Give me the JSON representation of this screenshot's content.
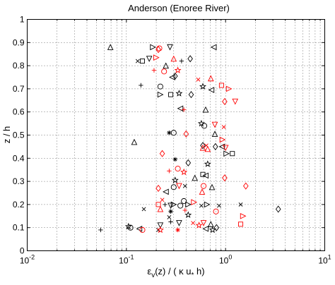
{
  "chart_data": {
    "type": "scatter",
    "title": "Anderson (Enoree River)",
    "ylabel": "z / h",
    "xlabel_parts": {
      "epsilon": "ε",
      "sub_v": "v",
      "mid": "(z) / ( κ u",
      "sub_star": "*",
      "end": " h)"
    },
    "x_scale": "log",
    "xlim": [
      0.01,
      10
    ],
    "ylim": [
      0,
      1
    ],
    "x_ticks": [
      {
        "value": 0.01,
        "base": "10",
        "exp": "-2"
      },
      {
        "value": 0.1,
        "base": "10",
        "exp": "-1"
      },
      {
        "value": 1,
        "base": "10",
        "exp": "0"
      },
      {
        "value": 10,
        "base": "10",
        "exp": "1"
      }
    ],
    "y_ticks": [
      "0",
      "0.1",
      "0.2",
      "0.3",
      "0.4",
      "0.5",
      "0.6",
      "0.7",
      "0.8",
      "0.9",
      "1"
    ],
    "grid": "dotted",
    "colors": {
      "black": "#000000",
      "red": "#ff0000"
    },
    "points": [
      {
        "x": 0.069,
        "y": 0.88,
        "m": "tri_up",
        "c": "black"
      },
      {
        "x": 0.185,
        "y": 0.88,
        "m": "tri_right",
        "c": "black"
      },
      {
        "x": 0.215,
        "y": 0.875,
        "m": "circle",
        "c": "red"
      },
      {
        "x": 0.275,
        "y": 0.88,
        "m": "tri_down",
        "c": "black"
      },
      {
        "x": 0.76,
        "y": 0.88,
        "m": "tri_left",
        "c": "black"
      },
      {
        "x": 0.2,
        "y": 0.835,
        "m": "tri_right",
        "c": "red"
      },
      {
        "x": 0.21,
        "y": 0.87,
        "m": "diamond",
        "c": "red"
      },
      {
        "x": 0.3,
        "y": 0.83,
        "m": "tri_up",
        "c": "red"
      },
      {
        "x": 0.13,
        "y": 0.82,
        "m": "x",
        "c": "black"
      },
      {
        "x": 0.145,
        "y": 0.82,
        "m": "square",
        "c": "black"
      },
      {
        "x": 0.17,
        "y": 0.83,
        "m": "tri_down",
        "c": "black"
      },
      {
        "x": 0.36,
        "y": 0.82,
        "m": "plus",
        "c": "black"
      },
      {
        "x": 0.44,
        "y": 0.83,
        "m": "diamond",
        "c": "black"
      },
      {
        "x": 0.33,
        "y": 0.78,
        "m": "star",
        "c": "red"
      },
      {
        "x": 0.25,
        "y": 0.8,
        "m": "tri_up",
        "c": "black"
      },
      {
        "x": 0.19,
        "y": 0.78,
        "m": "plus",
        "c": "red"
      },
      {
        "x": 0.24,
        "y": 0.775,
        "m": "circle",
        "c": "red"
      },
      {
        "x": 0.29,
        "y": 0.75,
        "m": "tri_left",
        "c": "black"
      },
      {
        "x": 0.31,
        "y": 0.755,
        "m": "diamond",
        "c": "black"
      },
      {
        "x": 0.53,
        "y": 0.74,
        "m": "x",
        "c": "red"
      },
      {
        "x": 0.71,
        "y": 0.745,
        "m": "tri_up",
        "c": "red"
      },
      {
        "x": 0.14,
        "y": 0.715,
        "m": "plus",
        "c": "black"
      },
      {
        "x": 0.22,
        "y": 0.71,
        "m": "circle",
        "c": "black"
      },
      {
        "x": 0.59,
        "y": 0.71,
        "m": "star",
        "c": "black"
      },
      {
        "x": 0.72,
        "y": 0.695,
        "m": "tri_left",
        "c": "black"
      },
      {
        "x": 0.91,
        "y": 0.715,
        "m": "square",
        "c": "red"
      },
      {
        "x": 1.08,
        "y": 0.7,
        "m": "tri_right",
        "c": "red"
      },
      {
        "x": 0.22,
        "y": 0.675,
        "m": "tri_right",
        "c": "black"
      },
      {
        "x": 0.28,
        "y": 0.675,
        "m": "square",
        "c": "black"
      },
      {
        "x": 0.34,
        "y": 0.68,
        "m": "star",
        "c": "black"
      },
      {
        "x": 0.45,
        "y": 0.675,
        "m": "diamond",
        "c": "black"
      },
      {
        "x": 0.98,
        "y": 0.645,
        "m": "diamond",
        "c": "red"
      },
      {
        "x": 1.25,
        "y": 0.645,
        "m": "tri_down",
        "c": "red"
      },
      {
        "x": 0.35,
        "y": 0.615,
        "m": "tri_left",
        "c": "black"
      },
      {
        "x": 0.38,
        "y": 0.61,
        "m": "plus",
        "c": "red"
      },
      {
        "x": 0.63,
        "y": 0.61,
        "m": "tri_up",
        "c": "black"
      },
      {
        "x": 0.57,
        "y": 0.55,
        "m": "star",
        "c": "black"
      },
      {
        "x": 0.61,
        "y": 0.54,
        "m": "circle",
        "c": "black"
      },
      {
        "x": 0.78,
        "y": 0.545,
        "m": "tri_down",
        "c": "red"
      },
      {
        "x": 0.96,
        "y": 0.535,
        "m": "x",
        "c": "red"
      },
      {
        "x": 0.27,
        "y": 0.51,
        "m": "asterisk",
        "c": "black"
      },
      {
        "x": 0.3,
        "y": 0.51,
        "m": "circle",
        "c": "black"
      },
      {
        "x": 0.4,
        "y": 0.505,
        "m": "diamond",
        "c": "red"
      },
      {
        "x": 0.78,
        "y": 0.505,
        "m": "tri_up",
        "c": "black"
      },
      {
        "x": 0.93,
        "y": 0.48,
        "m": "tri_right",
        "c": "red"
      },
      {
        "x": 0.12,
        "y": 0.47,
        "m": "tri_up",
        "c": "black"
      },
      {
        "x": 0.59,
        "y": 0.455,
        "m": "diamond",
        "c": "black"
      },
      {
        "x": 0.64,
        "y": 0.455,
        "m": "x",
        "c": "red"
      },
      {
        "x": 0.79,
        "y": 0.45,
        "m": "diamond",
        "c": "black"
      },
      {
        "x": 0.59,
        "y": 0.445,
        "m": "tri_up",
        "c": "red"
      },
      {
        "x": 0.66,
        "y": 0.44,
        "m": "tri_up",
        "c": "red"
      },
      {
        "x": 0.92,
        "y": 0.45,
        "m": "tri_left",
        "c": "black"
      },
      {
        "x": 1.0,
        "y": 0.445,
        "m": "tri_down",
        "c": "red"
      },
      {
        "x": 0.23,
        "y": 0.42,
        "m": "diamond",
        "c": "red"
      },
      {
        "x": 1.02,
        "y": 0.42,
        "m": "tri_right",
        "c": "black"
      },
      {
        "x": 1.17,
        "y": 0.42,
        "m": "square",
        "c": "black"
      },
      {
        "x": 0.31,
        "y": 0.395,
        "m": "asterisk",
        "c": "black"
      },
      {
        "x": 0.42,
        "y": 0.38,
        "m": "diamond",
        "c": "black"
      },
      {
        "x": 0.66,
        "y": 0.375,
        "m": "star",
        "c": "black"
      },
      {
        "x": 0.27,
        "y": 0.345,
        "m": "plus",
        "c": "red"
      },
      {
        "x": 0.33,
        "y": 0.355,
        "m": "circle",
        "c": "red"
      },
      {
        "x": 0.38,
        "y": 0.34,
        "m": "star",
        "c": "red"
      },
      {
        "x": 0.59,
        "y": 0.33,
        "m": "square",
        "c": "black"
      },
      {
        "x": 0.63,
        "y": 0.325,
        "m": "tri_left",
        "c": "black"
      },
      {
        "x": 0.98,
        "y": 0.315,
        "m": "diamond",
        "c": "red"
      },
      {
        "x": 0.49,
        "y": 0.315,
        "m": "tri_up",
        "c": "black"
      },
      {
        "x": 0.31,
        "y": 0.305,
        "m": "star",
        "c": "black"
      },
      {
        "x": 0.3,
        "y": 0.275,
        "m": "circle",
        "c": "black"
      },
      {
        "x": 0.34,
        "y": 0.28,
        "m": "tri_down",
        "c": "red"
      },
      {
        "x": 0.39,
        "y": 0.28,
        "m": "x",
        "c": "black"
      },
      {
        "x": 0.6,
        "y": 0.28,
        "m": "circle",
        "c": "red"
      },
      {
        "x": 0.73,
        "y": 0.275,
        "m": "tri_up",
        "c": "black"
      },
      {
        "x": 0.21,
        "y": 0.27,
        "m": "diamond",
        "c": "red"
      },
      {
        "x": 1.6,
        "y": 0.28,
        "m": "diamond",
        "c": "red"
      },
      {
        "x": 0.25,
        "y": 0.255,
        "m": "tri_left",
        "c": "black"
      },
      {
        "x": 0.58,
        "y": 0.255,
        "m": "tri_up",
        "c": "red"
      },
      {
        "x": 0.23,
        "y": 0.22,
        "m": "x",
        "c": "red"
      },
      {
        "x": 0.38,
        "y": 0.215,
        "m": "circle",
        "c": "black"
      },
      {
        "x": 0.48,
        "y": 0.21,
        "m": "tri_right",
        "c": "red"
      },
      {
        "x": 0.21,
        "y": 0.2,
        "m": "square",
        "c": "red"
      },
      {
        "x": 0.245,
        "y": 0.2,
        "m": "plus",
        "c": "black"
      },
      {
        "x": 0.28,
        "y": 0.195,
        "m": "tri_down",
        "c": "black"
      },
      {
        "x": 0.3,
        "y": 0.2,
        "m": "tri_right",
        "c": "black"
      },
      {
        "x": 0.35,
        "y": 0.195,
        "m": "circle",
        "c": "black"
      },
      {
        "x": 0.42,
        "y": 0.2,
        "m": "tri_right",
        "c": "black"
      },
      {
        "x": 0.57,
        "y": 0.195,
        "m": "x",
        "c": "black"
      },
      {
        "x": 0.65,
        "y": 0.2,
        "m": "tri_right",
        "c": "black"
      },
      {
        "x": 0.86,
        "y": 0.195,
        "m": "x",
        "c": "black"
      },
      {
        "x": 1.42,
        "y": 0.2,
        "m": "x",
        "c": "black"
      },
      {
        "x": 3.4,
        "y": 0.18,
        "m": "diamond",
        "c": "black"
      },
      {
        "x": 0.22,
        "y": 0.18,
        "m": "tri_up",
        "c": "red"
      },
      {
        "x": 0.15,
        "y": 0.18,
        "m": "x",
        "c": "black"
      },
      {
        "x": 0.28,
        "y": 0.17,
        "m": "asterisk",
        "c": "black"
      },
      {
        "x": 0.39,
        "y": 0.175,
        "m": "plus",
        "c": "red"
      },
      {
        "x": 0.8,
        "y": 0.17,
        "m": "circle",
        "c": "red"
      },
      {
        "x": 0.27,
        "y": 0.145,
        "m": "x",
        "c": "black"
      },
      {
        "x": 0.42,
        "y": 0.155,
        "m": "star",
        "c": "black"
      },
      {
        "x": 0.47,
        "y": 0.12,
        "m": "x",
        "c": "red"
      },
      {
        "x": 0.28,
        "y": 0.125,
        "m": "plus",
        "c": "black"
      },
      {
        "x": 0.54,
        "y": 0.11,
        "m": "star",
        "c": "red"
      },
      {
        "x": 0.34,
        "y": 0.12,
        "m": "tri_down",
        "c": "black"
      },
      {
        "x": 0.22,
        "y": 0.11,
        "m": "tri_down",
        "c": "black"
      },
      {
        "x": 0.6,
        "y": 0.12,
        "m": "tri_down",
        "c": "red"
      },
      {
        "x": 0.71,
        "y": 0.115,
        "m": "tri_up",
        "c": "black"
      },
      {
        "x": 1.5,
        "y": 0.15,
        "m": "tri_right",
        "c": "red"
      },
      {
        "x": 1.42,
        "y": 0.115,
        "m": "square",
        "c": "red"
      },
      {
        "x": 0.055,
        "y": 0.09,
        "m": "plus",
        "c": "black"
      },
      {
        "x": 0.105,
        "y": 0.105,
        "m": "star",
        "c": "black"
      },
      {
        "x": 0.11,
        "y": 0.1,
        "m": "circle",
        "c": "black"
      },
      {
        "x": 0.135,
        "y": 0.095,
        "m": "tri_left",
        "c": "black"
      },
      {
        "x": 0.145,
        "y": 0.09,
        "m": "circle",
        "c": "red"
      },
      {
        "x": 0.21,
        "y": 0.09,
        "m": "x",
        "c": "black"
      },
      {
        "x": 0.22,
        "y": 0.09,
        "m": "star",
        "c": "red"
      },
      {
        "x": 0.33,
        "y": 0.09,
        "m": "asterisk",
        "c": "red"
      },
      {
        "x": 0.63,
        "y": 0.095,
        "m": "tri_left",
        "c": "black"
      },
      {
        "x": 0.74,
        "y": 0.09,
        "m": "star",
        "c": "black"
      },
      {
        "x": 0.81,
        "y": 0.1,
        "m": "diamond",
        "c": "black"
      }
    ]
  }
}
